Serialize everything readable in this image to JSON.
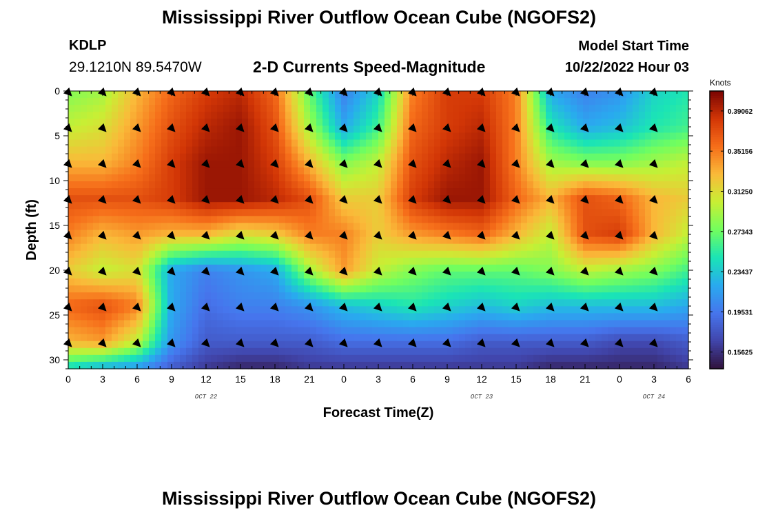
{
  "header": {
    "title": "Mississippi River Outflow Ocean Cube (NGOFS2)",
    "station_id": "KDLP",
    "station_coords": "29.1210N  89.5470W",
    "subtitle": "2-D Currents Speed-Magnitude",
    "model_label": "Model Start Time",
    "model_time": "10/22/2022 Hour 03"
  },
  "footer": {
    "title": "Mississippi River Outflow Ocean Cube (NGOFS2)"
  },
  "chart_data": {
    "type": "heatmap",
    "xlabel": "Forecast Time(Z)",
    "ylabel": "Depth (ft)",
    "x_range": [
      0,
      54
    ],
    "y_range": [
      0,
      31
    ],
    "x_ticks": [
      0,
      3,
      6,
      9,
      12,
      15,
      18,
      21,
      24,
      27,
      30,
      33,
      36,
      39,
      42,
      45,
      48,
      51,
      54
    ],
    "x_tick_labels": [
      "0",
      "3",
      "6",
      "9",
      "12",
      "15",
      "18",
      "21",
      "0",
      "3",
      "6",
      "9",
      "12",
      "15",
      "18",
      "21",
      "0",
      "3",
      "6"
    ],
    "y_ticks": [
      0,
      5,
      10,
      15,
      20,
      25,
      30
    ],
    "y_tick_labels": [
      "0",
      "5",
      "10",
      "15",
      "20",
      "25",
      "30"
    ],
    "date_labels": [
      {
        "x": 12,
        "text": "OCT 22"
      },
      {
        "x": 36,
        "text": "OCT 23"
      },
      {
        "x": 51,
        "text": "OCT 24"
      }
    ],
    "colorbar": {
      "title": "Knots",
      "min": 0.14,
      "max": 0.41,
      "ticks": [
        0.39062,
        0.35156,
        0.3125,
        0.27343,
        0.23437,
        0.19531,
        0.15625
      ],
      "tick_labels": [
        "0.39062",
        "0.35156",
        "0.31250",
        "0.27343",
        "0.23437",
        "0.19531",
        "0.15625"
      ]
    },
    "depths": [
      0,
      4,
      8,
      12,
      16,
      20,
      24,
      28,
      31
    ],
    "times": [
      0,
      3,
      6,
      9,
      12,
      15,
      18,
      21,
      24,
      27,
      30,
      33,
      36,
      39,
      42,
      45,
      48,
      51,
      54
    ],
    "speed_knots": [
      [
        0.28,
        0.29,
        0.33,
        0.36,
        0.38,
        0.39,
        0.36,
        0.27,
        0.2,
        0.24,
        0.35,
        0.38,
        0.38,
        0.35,
        0.22,
        0.2,
        0.21,
        0.24,
        0.25
      ],
      [
        0.3,
        0.31,
        0.34,
        0.37,
        0.39,
        0.4,
        0.37,
        0.29,
        0.22,
        0.26,
        0.36,
        0.38,
        0.39,
        0.35,
        0.25,
        0.22,
        0.23,
        0.25,
        0.26
      ],
      [
        0.33,
        0.33,
        0.35,
        0.38,
        0.4,
        0.4,
        0.38,
        0.33,
        0.28,
        0.3,
        0.37,
        0.39,
        0.4,
        0.35,
        0.29,
        0.28,
        0.28,
        0.29,
        0.3
      ],
      [
        0.37,
        0.37,
        0.37,
        0.38,
        0.4,
        0.4,
        0.39,
        0.37,
        0.32,
        0.32,
        0.38,
        0.4,
        0.4,
        0.36,
        0.33,
        0.37,
        0.36,
        0.33,
        0.32
      ],
      [
        0.35,
        0.33,
        0.34,
        0.33,
        0.33,
        0.31,
        0.32,
        0.35,
        0.35,
        0.32,
        0.34,
        0.35,
        0.36,
        0.33,
        0.3,
        0.37,
        0.38,
        0.33,
        0.3
      ],
      [
        0.32,
        0.3,
        0.31,
        0.22,
        0.2,
        0.21,
        0.22,
        0.29,
        0.34,
        0.3,
        0.28,
        0.27,
        0.27,
        0.27,
        0.28,
        0.3,
        0.29,
        0.28,
        0.26
      ],
      [
        0.36,
        0.37,
        0.35,
        0.22,
        0.19,
        0.2,
        0.2,
        0.21,
        0.23,
        0.24,
        0.25,
        0.24,
        0.23,
        0.24,
        0.23,
        0.23,
        0.23,
        0.23,
        0.22
      ],
      [
        0.33,
        0.34,
        0.3,
        0.21,
        0.18,
        0.18,
        0.18,
        0.18,
        0.19,
        0.19,
        0.19,
        0.19,
        0.18,
        0.18,
        0.18,
        0.18,
        0.17,
        0.17,
        0.18
      ],
      [
        0.24,
        0.22,
        0.21,
        0.18,
        0.16,
        0.15,
        0.15,
        0.16,
        0.16,
        0.16,
        0.16,
        0.16,
        0.16,
        0.16,
        0.15,
        0.15,
        0.15,
        0.15,
        0.16
      ]
    ],
    "vector_times": [
      0,
      3,
      6,
      9,
      12,
      15,
      18,
      21,
      24,
      27,
      30,
      33,
      36,
      39,
      42,
      45,
      48,
      51
    ],
    "vector_depths": [
      0,
      4,
      8,
      12,
      16,
      20,
      24,
      28
    ],
    "vector_direction_deg": 135
  }
}
